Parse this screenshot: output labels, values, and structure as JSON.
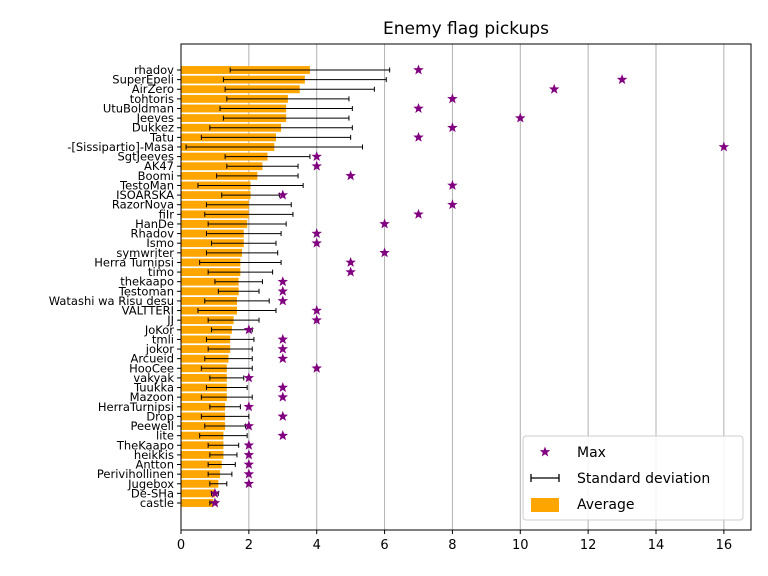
{
  "chart_data": {
    "type": "bar",
    "orientation": "horizontal",
    "title": "Enemy flag pickups",
    "xlabel": "",
    "ylabel": "",
    "xlim": [
      0,
      16.8
    ],
    "xticks": [
      0,
      2,
      4,
      6,
      8,
      10,
      12,
      14,
      16
    ],
    "grid": "vertical",
    "legend_position": "lower-right",
    "colors": {
      "average": "#ffa500",
      "max": "#800080",
      "std": "#000000",
      "grid": "#b0b0b0"
    },
    "legend": [
      {
        "key": "max",
        "label": "Max"
      },
      {
        "key": "std",
        "label": "Standard deviation"
      },
      {
        "key": "average",
        "label": "Average"
      }
    ],
    "categories": [
      "rhadov",
      "SuperEpeli",
      "AirZero",
      "tohtoris",
      "UtuBoldman",
      "Jeeves",
      "Dukkez",
      "Tatu",
      "-[Sissipartio]-Masa",
      "SgtJeeves",
      "AK47",
      "Boomi",
      "TestoMan",
      "ISOARSKA",
      "RazorNova",
      "fiIr",
      "HanDe",
      "Rhadov",
      "Ismo",
      "symwriter",
      "Herra Turnipsi",
      "timo",
      "thekaapo",
      "Testoman",
      "Watashi wa Risu desu",
      "VALTTERI",
      "JJ",
      "JoKor",
      "tmli",
      "jokor",
      "Arcueid",
      "HooCee",
      "vakyak",
      "Tuukka",
      "Mazoon",
      "HerraTurnipsi",
      "Drop",
      "Peewell",
      "lite",
      "TheKaapo",
      "heikkis",
      "Antton",
      "Perivihollinen",
      "Jugebox",
      "De-SHa",
      "castle"
    ],
    "series": [
      {
        "name": "Average",
        "values": [
          3.8,
          3.65,
          3.5,
          3.15,
          3.1,
          3.1,
          2.95,
          2.8,
          2.75,
          2.55,
          2.4,
          2.25,
          2.05,
          2.05,
          2.0,
          2.0,
          1.95,
          1.85,
          1.85,
          1.8,
          1.75,
          1.75,
          1.7,
          1.7,
          1.65,
          1.65,
          1.55,
          1.5,
          1.45,
          1.45,
          1.4,
          1.35,
          1.35,
          1.35,
          1.35,
          1.3,
          1.3,
          1.3,
          1.25,
          1.25,
          1.25,
          1.2,
          1.15,
          1.1,
          1.0,
          0.95
        ]
      },
      {
        "name": "Standard deviation",
        "values": [
          2.35,
          2.4,
          2.2,
          1.8,
          1.95,
          1.85,
          2.1,
          2.2,
          2.6,
          1.25,
          1.05,
          1.2,
          1.55,
          0.85,
          1.25,
          1.3,
          1.15,
          1.1,
          0.95,
          1.05,
          1.2,
          0.95,
          0.7,
          0.6,
          0.95,
          1.15,
          0.75,
          0.6,
          0.7,
          0.65,
          0.7,
          0.75,
          0.5,
          0.6,
          0.75,
          0.45,
          0.7,
          0.6,
          0.7,
          0.45,
          0.4,
          0.4,
          0.35,
          0.25,
          0.1,
          0.1
        ]
      },
      {
        "name": "Max",
        "values": [
          7,
          13,
          11,
          8,
          7,
          10,
          8,
          7,
          16,
          4,
          4,
          5,
          8,
          3,
          8,
          7,
          6,
          4,
          4,
          6,
          5,
          5,
          3,
          3,
          3,
          4,
          4,
          2,
          3,
          3,
          3,
          4,
          2,
          3,
          3,
          2,
          3,
          2,
          3,
          2,
          2,
          2,
          2,
          2,
          1,
          1
        ]
      }
    ]
  }
}
